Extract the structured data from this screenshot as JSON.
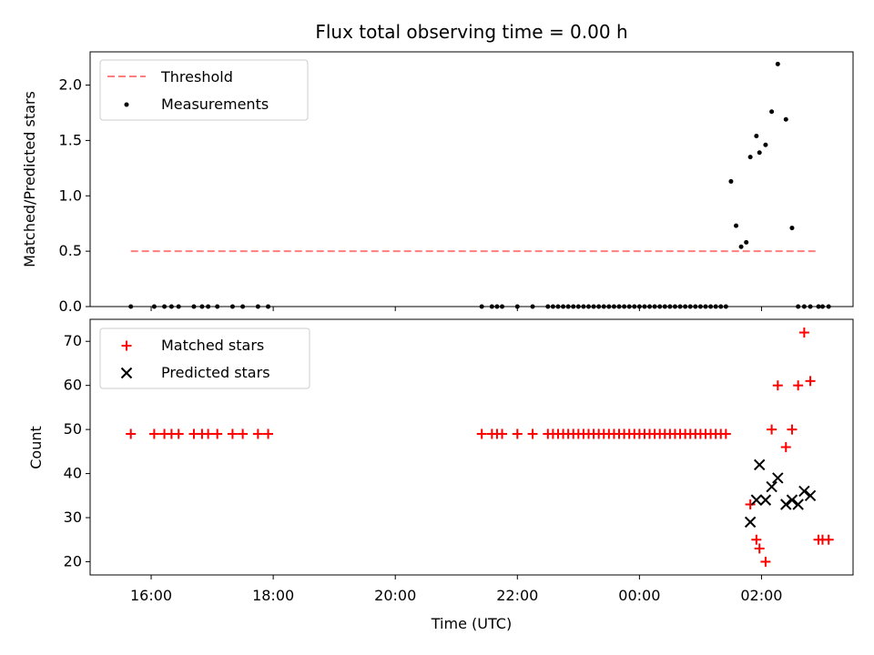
{
  "chart_data": [
    {
      "type": "scatter",
      "title": "Flux total observing time = 0.00 h",
      "xlabel": "",
      "ylabel": "Matched/Predicted stars",
      "xlim": [
        "15:00",
        "03:30"
      ],
      "ylim": [
        0.0,
        2.3
      ],
      "yticks": [
        "0.0",
        "0.5",
        "1.0",
        "1.5",
        "2.0"
      ],
      "legend_location": "upper-left",
      "grid": false,
      "series": [
        {
          "name": "Threshold",
          "style": "dashed-line",
          "color": "#ff7f7f",
          "x": [
            "15:40",
            "02:55"
          ],
          "y": [
            0.5,
            0.5
          ]
        },
        {
          "name": "Measurements",
          "style": "dot",
          "color": "#000000",
          "x": [
            "15:40",
            "16:03",
            "16:13",
            "16:20",
            "16:27",
            "16:42",
            "16:50",
            "16:56",
            "17:05",
            "17:20",
            "17:30",
            "17:45",
            "17:55",
            "21:25",
            "21:35",
            "21:40",
            "21:45",
            "22:00",
            "22:15",
            "22:30",
            "22:35",
            "22:40",
            "22:45",
            "22:50",
            "22:55",
            "23:00",
            "23:05",
            "23:10",
            "23:15",
            "23:20",
            "23:25",
            "23:30",
            "23:35",
            "23:40",
            "23:45",
            "23:50",
            "23:55",
            "00:00",
            "00:05",
            "00:10",
            "00:15",
            "00:20",
            "00:25",
            "00:30",
            "00:35",
            "00:40",
            "00:45",
            "00:50",
            "00:55",
            "01:00",
            "01:05",
            "01:10",
            "01:15",
            "01:20",
            "01:25",
            "01:30",
            "01:35",
            "01:40",
            "01:45",
            "01:49",
            "01:55",
            "01:58",
            "02:04",
            "02:10",
            "02:16",
            "02:24",
            "02:30",
            "02:36",
            "02:42",
            "02:48",
            "02:56",
            "03:00",
            "03:06"
          ],
          "y": [
            0,
            0,
            0,
            0,
            0,
            0,
            0,
            0,
            0,
            0,
            0,
            0,
            0,
            0,
            0,
            0,
            0,
            0,
            0,
            0,
            0,
            0,
            0,
            0,
            0,
            0,
            0,
            0,
            0,
            0,
            0,
            0,
            0,
            0,
            0,
            0,
            0,
            0,
            0,
            0,
            0,
            0,
            0,
            0,
            0,
            0,
            0,
            0,
            0,
            0,
            0,
            0,
            0,
            0,
            0,
            1.13,
            0.73,
            0.54,
            0.58,
            1.35,
            1.54,
            1.39,
            1.46,
            1.76,
            2.19,
            1.69,
            0.71,
            0,
            0,
            0,
            0,
            0,
            0
          ]
        }
      ]
    },
    {
      "type": "scatter",
      "title": "",
      "xlabel": "Time (UTC)",
      "ylabel": "Count",
      "xlim": [
        "15:00",
        "03:30"
      ],
      "ylim": [
        17,
        75
      ],
      "yticks": [
        "20",
        "30",
        "40",
        "50",
        "60",
        "70"
      ],
      "xticks": [
        "16:00",
        "18:00",
        "20:00",
        "22:00",
        "00:00",
        "02:00"
      ],
      "legend_location": "upper-left",
      "grid": false,
      "series": [
        {
          "name": "Matched stars",
          "marker": "+",
          "color": "#ff0000",
          "x": [
            "15:40",
            "16:03",
            "16:13",
            "16:20",
            "16:27",
            "16:42",
            "16:50",
            "16:56",
            "17:05",
            "17:20",
            "17:30",
            "17:45",
            "17:55",
            "21:25",
            "21:35",
            "21:40",
            "21:45",
            "22:00",
            "22:15",
            "22:30",
            "22:35",
            "22:40",
            "22:45",
            "22:50",
            "22:55",
            "23:00",
            "23:05",
            "23:10",
            "23:15",
            "23:20",
            "23:25",
            "23:30",
            "23:35",
            "23:40",
            "23:45",
            "23:50",
            "23:55",
            "00:00",
            "00:05",
            "00:10",
            "00:15",
            "00:20",
            "00:25",
            "00:30",
            "00:35",
            "00:40",
            "00:45",
            "00:50",
            "00:55",
            "01:00",
            "01:05",
            "01:10",
            "01:15",
            "01:20",
            "01:25",
            "01:49",
            "01:55",
            "01:58",
            "02:04",
            "02:10",
            "02:16",
            "02:24",
            "02:30",
            "02:36",
            "02:42",
            "02:48",
            "02:56",
            "03:00",
            "03:06"
          ],
          "y": [
            49,
            49,
            49,
            49,
            49,
            49,
            49,
            49,
            49,
            49,
            49,
            49,
            49,
            49,
            49,
            49,
            49,
            49,
            49,
            49,
            49,
            49,
            49,
            49,
            49,
            49,
            49,
            49,
            49,
            49,
            49,
            49,
            49,
            49,
            49,
            49,
            49,
            49,
            49,
            49,
            49,
            49,
            49,
            49,
            49,
            49,
            49,
            49,
            49,
            49,
            49,
            49,
            49,
            49,
            49,
            33,
            25,
            23,
            20,
            50,
            60,
            46,
            50,
            60,
            72,
            61,
            25,
            25,
            25
          ]
        },
        {
          "name": "Predicted stars",
          "marker": "x",
          "color": "#000000",
          "x": [
            "01:49",
            "01:55",
            "01:58",
            "02:04",
            "02:10",
            "02:16",
            "02:24",
            "02:30",
            "02:36",
            "02:42",
            "02:48"
          ],
          "y": [
            29,
            34,
            42,
            34,
            37,
            39,
            33,
            34,
            33,
            36,
            35
          ]
        }
      ]
    }
  ]
}
